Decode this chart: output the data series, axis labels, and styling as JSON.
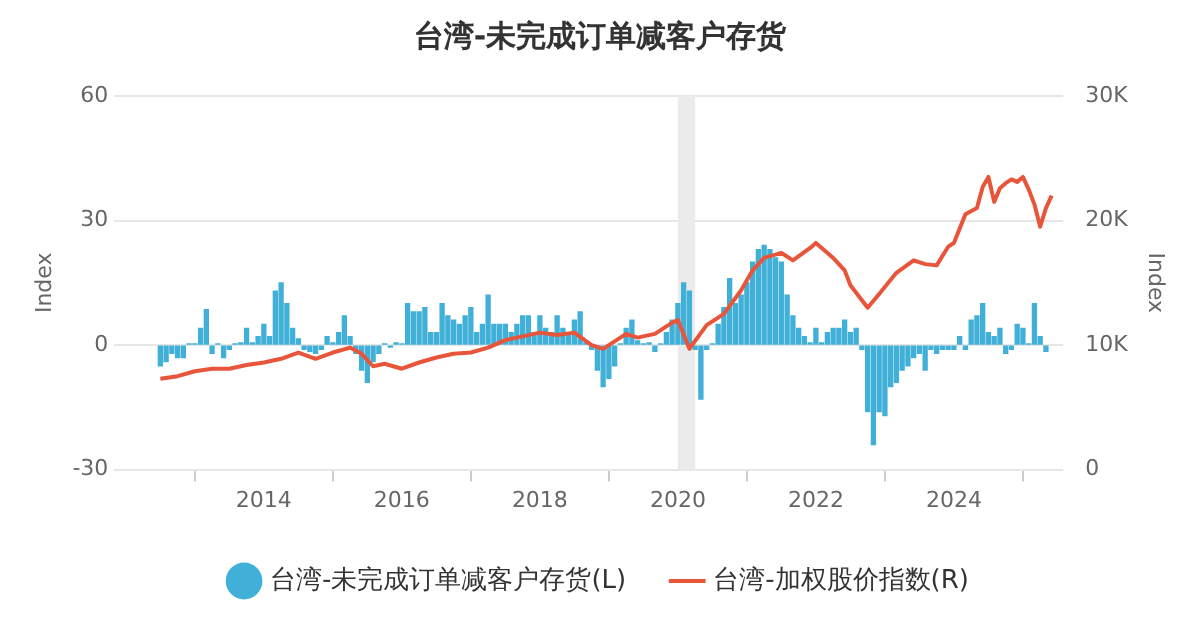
{
  "chart_data": {
    "type": "bar",
    "title": "台湾-未完成订单减客户存货",
    "ylabel": "Index",
    "y2label": "Index",
    "x": [
      "2012-07",
      "2012-08",
      "2012-09",
      "2012-10",
      "2012-11",
      "2012-12",
      "2013-01",
      "2013-02",
      "2013-03",
      "2013-04",
      "2013-05",
      "2013-06",
      "2013-07",
      "2013-08",
      "2013-09",
      "2013-10",
      "2013-11",
      "2013-12",
      "2014-01",
      "2014-02",
      "2014-03",
      "2014-04",
      "2014-05",
      "2014-06",
      "2014-07",
      "2014-08",
      "2014-09",
      "2014-10",
      "2014-11",
      "2014-12",
      "2015-01",
      "2015-02",
      "2015-03",
      "2015-04",
      "2015-05",
      "2015-06",
      "2015-07",
      "2015-08",
      "2015-09",
      "2015-10",
      "2015-11",
      "2015-12",
      "2016-01",
      "2016-02",
      "2016-03",
      "2016-04",
      "2016-05",
      "2016-06",
      "2016-07",
      "2016-08",
      "2016-09",
      "2016-10",
      "2016-11",
      "2016-12",
      "2017-01",
      "2017-02",
      "2017-03",
      "2017-04",
      "2017-05",
      "2017-06",
      "2017-07",
      "2017-08",
      "2017-09",
      "2017-10",
      "2017-11",
      "2017-12",
      "2018-01",
      "2018-02",
      "2018-03",
      "2018-04",
      "2018-05",
      "2018-06",
      "2018-07",
      "2018-08",
      "2018-09",
      "2018-10",
      "2018-11",
      "2018-12",
      "2019-01",
      "2019-02",
      "2019-03",
      "2019-04",
      "2019-05",
      "2019-06",
      "2019-07",
      "2019-08",
      "2019-09",
      "2019-10",
      "2019-11",
      "2019-12",
      "2020-01",
      "2020-02",
      "2020-03",
      "2020-04",
      "2020-05",
      "2020-06",
      "2020-07",
      "2020-08",
      "2020-09",
      "2020-10",
      "2020-11",
      "2020-12",
      "2021-01",
      "2021-02",
      "2021-03",
      "2021-04",
      "2021-05",
      "2021-06",
      "2021-07",
      "2021-08",
      "2021-09",
      "2021-10",
      "2021-11",
      "2021-12",
      "2022-01",
      "2022-02",
      "2022-03",
      "2022-04",
      "2022-05",
      "2022-06",
      "2022-07",
      "2022-08",
      "2022-09",
      "2022-10",
      "2022-11",
      "2022-12",
      "2023-01",
      "2023-02",
      "2023-03",
      "2023-04",
      "2023-05",
      "2023-06",
      "2023-07",
      "2023-08",
      "2023-09",
      "2023-10",
      "2023-11",
      "2023-12",
      "2024-01",
      "2024-02",
      "2024-03",
      "2024-04",
      "2024-05",
      "2024-06",
      "2024-07",
      "2024-08",
      "2024-09",
      "2024-10",
      "2024-11",
      "2024-12",
      "2025-01",
      "2025-02",
      "2025-03",
      "2025-04",
      "2025-05"
    ],
    "series": [
      {
        "name": "台湾-未完成订单减客户存货(L)",
        "color": "#40b0d8",
        "values": [
          -5,
          -4,
          -2,
          -3,
          -3,
          0.3,
          0.3,
          4,
          8.5,
          -2,
          0.3,
          -3,
          -1,
          0.3,
          0.5,
          4,
          0.5,
          2,
          5,
          2,
          13,
          15,
          10,
          4,
          1.5,
          -1,
          -1.5,
          -2,
          -1,
          2,
          0.5,
          3,
          7,
          2,
          -2,
          -6,
          -9,
          -4,
          -2,
          0.3,
          -0.5,
          0.5,
          0.3,
          10,
          8,
          8,
          9,
          3,
          3,
          10,
          7,
          6,
          5,
          7,
          9,
          3,
          5,
          12,
          5,
          5,
          5,
          3,
          5,
          7,
          7,
          3,
          7,
          4,
          3,
          7,
          4,
          3,
          6,
          8,
          0.5,
          -1,
          -6,
          -10,
          -8,
          -5,
          0.3,
          4,
          6,
          1,
          0.3,
          0.5,
          -1.5,
          0.3,
          3,
          6,
          10,
          15,
          13,
          -1,
          -13,
          -1,
          0.3,
          5,
          9,
          16,
          10,
          12,
          15,
          20,
          23,
          24,
          23,
          21,
          20,
          12,
          7,
          4,
          2,
          0.5,
          4,
          0.5,
          3,
          4,
          4,
          6,
          3,
          4,
          -1,
          -16,
          -24,
          -16,
          -17,
          -10,
          -9,
          -6,
          -5,
          -3,
          -2,
          -6,
          -1,
          -2,
          -1,
          -1,
          -1,
          2,
          -1,
          6,
          7,
          10,
          3,
          2,
          4,
          -2,
          -1,
          5,
          4,
          0.3,
          10,
          2,
          -1.5
        ]
      },
      {
        "name": "台湾-加权股价指数(R)",
        "type": "line",
        "axis": "y2",
        "color": "#e8553a",
        "x": [
          "2012-07",
          "2012-10",
          "2013-01",
          "2013-04",
          "2013-07",
          "2013-10",
          "2014-01",
          "2014-04",
          "2014-07",
          "2014-10",
          "2015-01",
          "2015-04",
          "2015-06",
          "2015-08",
          "2015-10",
          "2016-01",
          "2016-04",
          "2016-07",
          "2016-10",
          "2017-01",
          "2017-04",
          "2017-07",
          "2017-10",
          "2018-01",
          "2018-04",
          "2018-07",
          "2018-10",
          "2018-12",
          "2019-04",
          "2019-06",
          "2019-09",
          "2019-12",
          "2020-01",
          "2020-03",
          "2020-06",
          "2020-09",
          "2020-12",
          "2021-02",
          "2021-04",
          "2021-07",
          "2021-09",
          "2021-12",
          "2022-01",
          "2022-04",
          "2022-06",
          "2022-07",
          "2022-10",
          "2022-12",
          "2023-03",
          "2023-06",
          "2023-08",
          "2023-10",
          "2023-12",
          "2024-01",
          "2024-03",
          "2024-05",
          "2024-06",
          "2024-07",
          "2024-08",
          "2024-09",
          "2024-10",
          "2024-11",
          "2024-12",
          "2025-01",
          "2025-02",
          "2025-03",
          "2025-04",
          "2025-05",
          "2025-06"
        ],
        "values": [
          7300,
          7500,
          7900,
          8100,
          8100,
          8400,
          8600,
          8900,
          9400,
          8900,
          9400,
          9800,
          9300,
          8300,
          8500,
          8100,
          8600,
          9000,
          9300,
          9400,
          9800,
          10400,
          10700,
          11000,
          10800,
          11000,
          10000,
          9700,
          10900,
          10600,
          10900,
          11800,
          12000,
          9700,
          11600,
          12500,
          14400,
          16000,
          17000,
          17400,
          16800,
          17800,
          18200,
          17000,
          16000,
          14800,
          13000,
          14100,
          15800,
          16800,
          16500,
          16400,
          17900,
          18200,
          20500,
          21000,
          22700,
          23500,
          21500,
          22600,
          23000,
          23300,
          23100,
          23500,
          22500,
          21300,
          19500,
          21000,
          22000
        ]
      }
    ],
    "xlim": [
      "2011-11",
      "2025-08"
    ],
    "xticks": [
      "2014",
      "2016",
      "2018",
      "2020",
      "2022",
      "2024"
    ],
    "ylim": [
      -30,
      60
    ],
    "yticks": [
      -30,
      0,
      30,
      60
    ],
    "y2lim": [
      0,
      30000
    ],
    "y2ticks": [
      {
        "value": 0,
        "label": "0"
      },
      {
        "value": 10000,
        "label": "10K"
      },
      {
        "value": 20000,
        "label": "20K"
      },
      {
        "value": 30000,
        "label": "30K"
      }
    ],
    "bands": [
      {
        "axis": "x",
        "from": "2020-01",
        "to": "2020-04",
        "color": "#ebebeb"
      }
    ],
    "grid": "y",
    "legend": "bottom"
  }
}
